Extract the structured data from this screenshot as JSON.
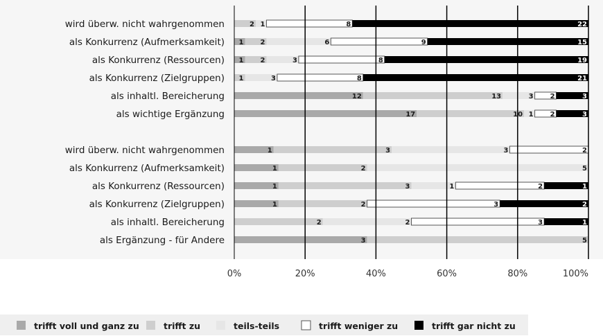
{
  "chart_data": {
    "type": "bar",
    "orientation": "horizontal",
    "stacked": "percent",
    "title": "",
    "xlabel": "",
    "ylabel": "",
    "xlim": [
      0,
      100
    ],
    "x_ticks": [
      "0%",
      "20%",
      "40%",
      "60%",
      "80%",
      "100%"
    ],
    "grid": "vertical",
    "legend_position": "bottom",
    "series": [
      {
        "name": "trifft voll und ganz zu",
        "color": "#a9a9a9"
      },
      {
        "name": "trifft zu",
        "color": "#cecece"
      },
      {
        "name": "teils-teils",
        "color": "#e6e6e6"
      },
      {
        "name": "trifft weniger zu",
        "color": "#ffffff"
      },
      {
        "name": "trifft gar nicht zu",
        "color": "#000000"
      }
    ],
    "groups": [
      {
        "categories": [
          "wird überw. nicht wahrgenommen",
          "als Konkurrenz (Aufmerksamkeit)",
          "als Konkurrenz (Ressourcen)",
          "als Konkurrenz (Zielgruppen)",
          "als inhaltl. Bereicherung",
          "als wichtige Ergänzung"
        ],
        "values": [
          [
            0,
            2,
            1,
            8,
            22
          ],
          [
            1,
            2,
            6,
            9,
            15
          ],
          [
            1,
            2,
            3,
            8,
            19
          ],
          [
            0,
            1,
            3,
            8,
            21
          ],
          [
            12,
            13,
            3,
            2,
            3
          ],
          [
            17,
            10,
            1,
            2,
            3
          ]
        ]
      },
      {
        "categories": [
          "wird überw. nicht wahrgenommen",
          "als Konkurrenz (Aufmerksamkeit)",
          "als Konkurrenz (Ressourcen)",
          "als Konkurrenz (Zielgruppen)",
          "als inhaltl. Bereicherung",
          "als Ergänzung - für Andere"
        ],
        "values": [
          [
            1,
            3,
            3,
            2,
            0
          ],
          [
            1,
            2,
            5,
            0,
            0
          ],
          [
            1,
            3,
            1,
            2,
            1
          ],
          [
            1,
            2,
            0,
            3,
            2
          ],
          [
            0,
            2,
            2,
            3,
            1
          ],
          [
            3,
            5,
            0,
            0,
            0
          ]
        ]
      }
    ]
  }
}
